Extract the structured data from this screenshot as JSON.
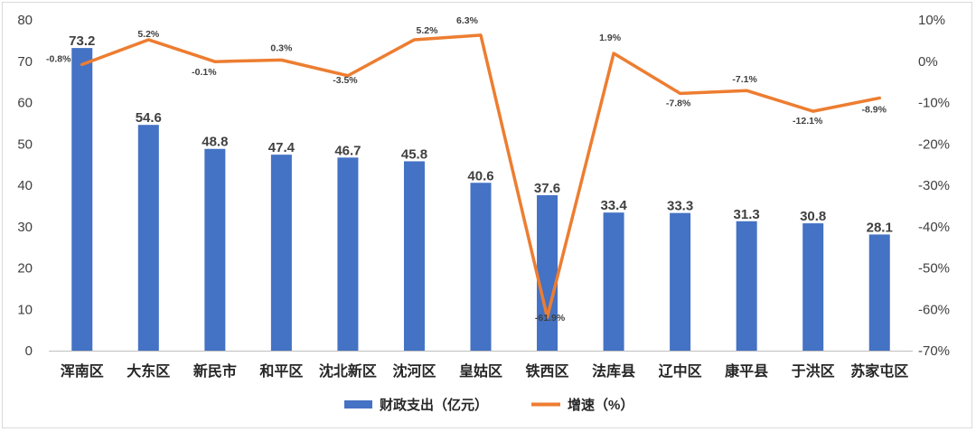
{
  "chart_data": {
    "type": "bar",
    "categories": [
      "浑南区",
      "大东区",
      "新民市",
      "和平区",
      "沈北新区",
      "沈河区",
      "皇姑区",
      "铁西区",
      "法库县",
      "辽中区",
      "康平县",
      "于洪区",
      "苏家屯区"
    ],
    "series": [
      {
        "name": "财政支出（亿元）",
        "type": "bar",
        "axis": "left",
        "color": "#4472C4",
        "values": [
          73.2,
          54.6,
          48.8,
          47.4,
          46.7,
          45.8,
          40.6,
          37.6,
          33.4,
          33.3,
          31.3,
          30.8,
          28.1
        ],
        "labels": [
          "73.2",
          "54.6",
          "48.8",
          "47.4",
          "46.7",
          "45.8",
          "40.6",
          "37.6",
          "33.4",
          "33.3",
          "31.3",
          "30.8",
          "28.1"
        ]
      },
      {
        "name": "增速（%）",
        "type": "line",
        "axis": "right",
        "color": "#ED7D31",
        "values": [
          -0.8,
          5.2,
          -0.1,
          0.3,
          -3.5,
          5.2,
          6.3,
          -61.9,
          1.9,
          -7.8,
          -7.1,
          -12.1,
          -8.9
        ],
        "labels": [
          "-0.8%",
          "5.2%",
          "-0.1%",
          "0.3%",
          "-3.5%",
          "5.2%",
          "6.3%",
          "-61.9%",
          "1.9%",
          "-7.8%",
          "-7.1%",
          "-12.1%",
          "-8.9%"
        ]
      }
    ],
    "left_axis": {
      "min": 0,
      "max": 80,
      "step": 10,
      "ticks": [
        "0",
        "10",
        "20",
        "30",
        "40",
        "50",
        "60",
        "70",
        "80"
      ]
    },
    "right_axis": {
      "min": -70,
      "max": 10,
      "step": 10,
      "ticks": [
        "-70%",
        "-60%",
        "-50%",
        "-40%",
        "-30%",
        "-20%",
        "-10%",
        "0%",
        "10%"
      ]
    },
    "grid": false,
    "legend_position": "bottom"
  }
}
